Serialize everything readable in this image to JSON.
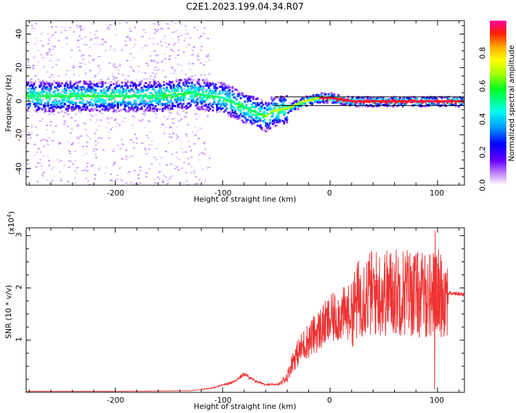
{
  "title": "C2E1.2023.199.04.34.R07",
  "chart_data": [
    {
      "type": "heatmap",
      "name": "spectrogram",
      "xlabel": "Height of straight line (km)",
      "ylabel": "Frequency (Hz)",
      "xlim": [
        -283,
        125
      ],
      "ylim": [
        -50,
        48
      ],
      "xticks": [
        "-200",
        "-100",
        "0",
        "100"
      ],
      "yticks": [
        "40",
        "20",
        "0",
        "-20",
        "-40"
      ],
      "colorbar": {
        "label": "Normalized spectral amplitude",
        "range": [
          0.0,
          1.0
        ],
        "ticks": [
          "0.0",
          "0.2",
          "0.4",
          "0.6",
          "0.8"
        ]
      },
      "ridge_frequency": [
        {
          "x": -280,
          "y": 3
        },
        {
          "x": -220,
          "y": 3
        },
        {
          "x": -160,
          "y": 3
        },
        {
          "x": -130,
          "y": 5
        },
        {
          "x": -100,
          "y": 2
        },
        {
          "x": -80,
          "y": -4
        },
        {
          "x": -60,
          "y": -9
        },
        {
          "x": -55,
          "y": -6
        },
        {
          "x": -40,
          "y": -4
        },
        {
          "x": -25,
          "y": 0
        },
        {
          "x": -10,
          "y": 2
        },
        {
          "x": 0,
          "y": 2
        },
        {
          "x": 20,
          "y": 0
        },
        {
          "x": 60,
          "y": 0
        },
        {
          "x": 90,
          "y": 0
        },
        {
          "x": 125,
          "y": 0
        }
      ]
    },
    {
      "type": "line",
      "name": "snr",
      "xlabel": "Height of straight line (km)",
      "ylabel": "SNR (10 * v/v)",
      "exponent_label": "(x10",
      "exponent_power": "4",
      "exponent_close": ")",
      "xlim": [
        -283,
        125
      ],
      "ylim": [
        0,
        3.15
      ],
      "xticks": [
        "-200",
        "-100",
        "0",
        "100"
      ],
      "yticks": [
        "3",
        "2",
        "1"
      ],
      "series": [
        {
          "name": "SNR",
          "color": "#ee3333",
          "points": [
            {
              "x": -283,
              "y": 0.02
            },
            {
              "x": -200,
              "y": 0.02
            },
            {
              "x": -130,
              "y": 0.03
            },
            {
              "x": -110,
              "y": 0.08
            },
            {
              "x": -90,
              "y": 0.2
            },
            {
              "x": -80,
              "y": 0.35
            },
            {
              "x": -70,
              "y": 0.22
            },
            {
              "x": -60,
              "y": 0.15
            },
            {
              "x": -48,
              "y": 0.15
            },
            {
              "x": -40,
              "y": 0.3
            },
            {
              "x": -35,
              "y": 0.6
            },
            {
              "x": -25,
              "y": 0.9
            },
            {
              "x": -15,
              "y": 1.1
            },
            {
              "x": -5,
              "y": 1.3
            },
            {
              "x": 5,
              "y": 1.45
            },
            {
              "x": 20,
              "y": 1.55
            },
            {
              "x": 30,
              "y": 1.9
            },
            {
              "x": 50,
              "y": 1.9
            },
            {
              "x": 70,
              "y": 1.95
            },
            {
              "x": 85,
              "y": 1.85
            },
            {
              "x": 100,
              "y": 1.9
            },
            {
              "x": 110,
              "y": 1.9
            },
            {
              "x": 125,
              "y": 1.88
            }
          ]
        }
      ]
    }
  ]
}
